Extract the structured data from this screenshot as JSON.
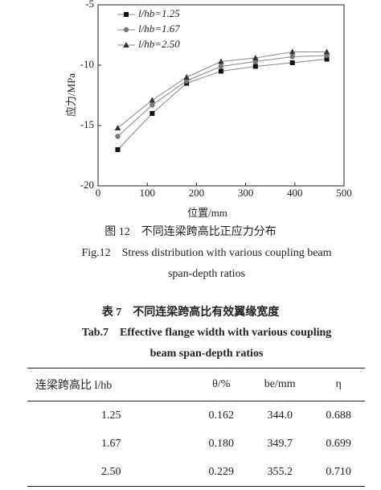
{
  "chart_data": {
    "type": "line",
    "x_label": "位置/mm",
    "y_label": "应力/MPa",
    "x": [
      40,
      110,
      180,
      250,
      320,
      395,
      465
    ],
    "series": [
      {
        "name": "l/hb=1.25",
        "color": "#111111",
        "marker": "square",
        "values": [
          -17,
          -14,
          -11.5,
          -10.5,
          -10.1,
          -9.8,
          -9.5
        ]
      },
      {
        "name": "l/hb=1.67",
        "color": "#777777",
        "marker": "circle",
        "values": [
          -15.9,
          -13.3,
          -11.3,
          -10.1,
          -9.7,
          -9.3,
          -9.2
        ]
      },
      {
        "name": "l/hb=2.50",
        "color": "#333333",
        "marker": "triangle",
        "values": [
          -15.2,
          -12.9,
          -11.0,
          -9.7,
          -9.4,
          -8.9,
          -8.9
        ]
      }
    ],
    "xlim": [
      0,
      500
    ],
    "xticks": [
      0,
      100,
      200,
      300,
      400,
      500
    ],
    "ylim": [
      -20,
      -5
    ],
    "yticks": [
      -20,
      -15,
      -10,
      -5
    ],
    "legend": "upper-left",
    "grid": false
  },
  "figure_caption": {
    "cn": "图 12　不同连梁跨高比正应力分布",
    "en": "Fig.12　Stress distribution with various coupling beam span-depth ratios"
  },
  "table": {
    "title_cn": "表 7　不同连梁跨高比有效翼缘宽度",
    "title_en": "Tab.7　Effective flange width with various coupling beam span-depth ratios",
    "header": [
      "连梁跨高比 l/hb",
      "θ/%",
      "be/mm",
      "η"
    ],
    "rows": [
      [
        "1.25",
        "0.162",
        "344.0",
        "0.688"
      ],
      [
        "1.67",
        "0.180",
        "349.7",
        "0.699"
      ],
      [
        "2.50",
        "0.229",
        "355.2",
        "0.710"
      ]
    ]
  }
}
